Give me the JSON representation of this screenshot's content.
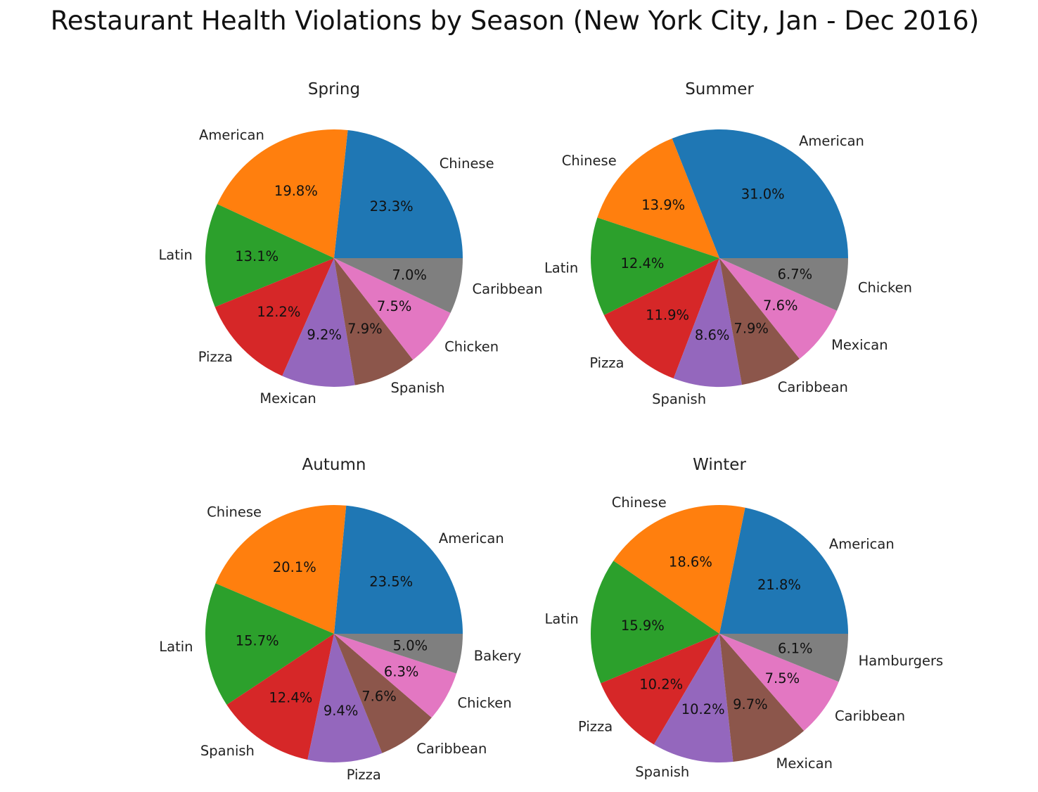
{
  "title": "Restaurant Health Violations by Season (New York City, Jan - Dec 2016)",
  "palette": [
    "#1f77b4",
    "#ff7f0e",
    "#2ca02c",
    "#d62728",
    "#9467bd",
    "#8c564b",
    "#e377c2",
    "#7f7f7f"
  ],
  "chart_data": [
    {
      "type": "pie",
      "title": "Spring",
      "labels": [
        "Chinese",
        "American",
        "Latin",
        "Pizza",
        "Mexican",
        "Spanish",
        "Chicken",
        "Caribbean"
      ],
      "values": [
        23.3,
        19.8,
        13.1,
        12.2,
        9.2,
        7.9,
        7.5,
        7.0
      ],
      "value_labels": [
        "23.3%",
        "19.8%",
        "13.1%",
        "12.2%",
        "9.2%",
        "7.9%",
        "7.5%",
        "7.0%"
      ]
    },
    {
      "type": "pie",
      "title": "Summer",
      "labels": [
        "American",
        "Chinese",
        "Latin",
        "Pizza",
        "Spanish",
        "Caribbean",
        "Mexican",
        "Chicken"
      ],
      "values": [
        31.0,
        13.9,
        12.4,
        11.9,
        8.6,
        7.9,
        7.6,
        6.7
      ],
      "value_labels": [
        "31.0%",
        "13.9%",
        "12.4%",
        "11.9%",
        "8.6%",
        "7.9%",
        "7.6%",
        "6.7%"
      ]
    },
    {
      "type": "pie",
      "title": "Autumn",
      "labels": [
        "American",
        "Chinese",
        "Latin",
        "Spanish",
        "Pizza",
        "Caribbean",
        "Chicken",
        "Bakery"
      ],
      "values": [
        23.5,
        20.1,
        15.7,
        12.4,
        9.4,
        7.6,
        6.3,
        5.0
      ],
      "value_labels": [
        "23.5%",
        "20.1%",
        "15.7%",
        "12.4%",
        "9.4%",
        "7.6%",
        "6.3%",
        "5.0%"
      ]
    },
    {
      "type": "pie",
      "title": "Winter",
      "labels": [
        "American",
        "Chinese",
        "Latin",
        "Pizza",
        "Spanish",
        "Mexican",
        "Caribbean",
        "Hamburgers"
      ],
      "values": [
        21.8,
        18.6,
        15.9,
        10.2,
        10.2,
        9.7,
        7.5,
        6.1
      ],
      "value_labels": [
        "21.8%",
        "18.6%",
        "15.9%",
        "10.2%",
        "10.2%",
        "9.7%",
        "7.5%",
        "6.1%"
      ]
    }
  ]
}
